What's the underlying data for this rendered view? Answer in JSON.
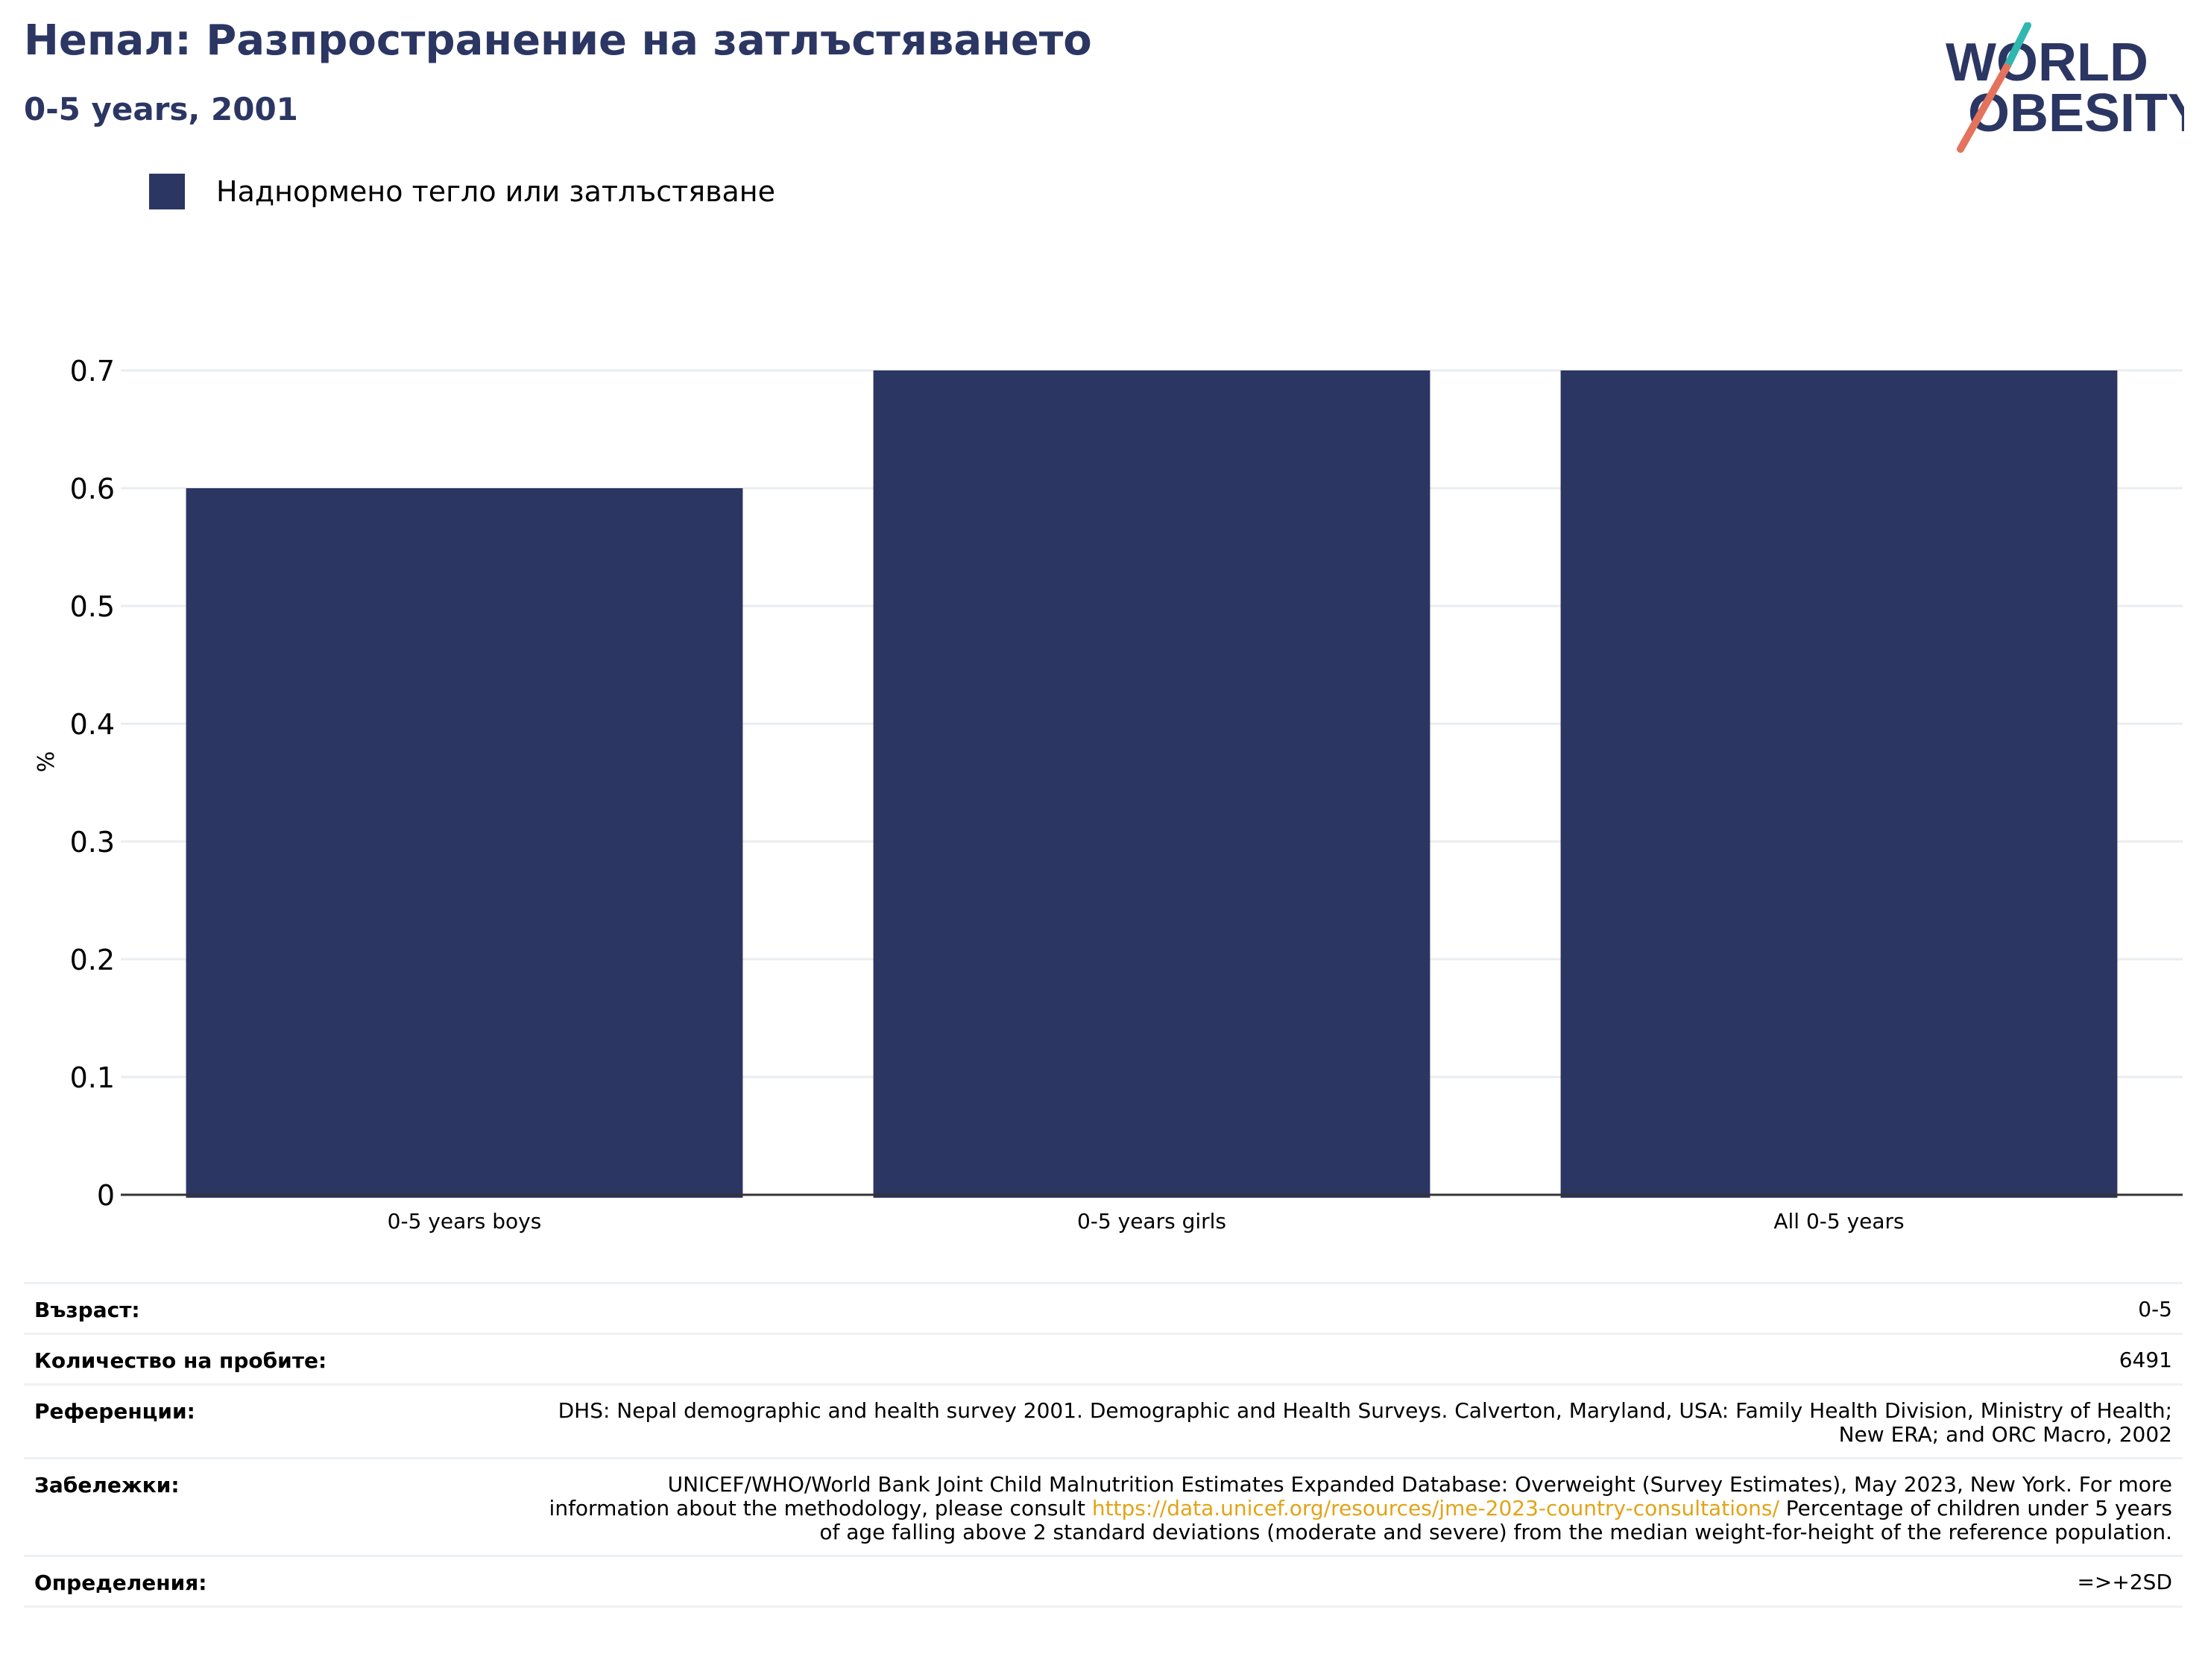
{
  "header": {
    "title": "Непал: Разпространение на затлъстяването",
    "subtitle": "0-5 years, 2001"
  },
  "logo": {
    "line1": "WORLD",
    "line2": "OBESITY"
  },
  "colors": {
    "bar": "#2b3663",
    "title": "#2b3663",
    "link": "#e3a316",
    "grid": "#e9edf0"
  },
  "chart_data": {
    "type": "bar",
    "categories": [
      "0-5 years boys",
      "0-5 years girls",
      "All 0-5 years"
    ],
    "series": [
      {
        "name": "Наднормено тегло или затлъстяване",
        "values": [
          0.6,
          0.7,
          0.7
        ]
      }
    ],
    "ylabel": "%",
    "xlabel": "",
    "ylim": [
      0,
      0.7
    ],
    "yticks": [
      "0",
      "0.1",
      "0.2",
      "0.3",
      "0.4",
      "0.5",
      "0.6",
      "0.7"
    ],
    "grid": true,
    "legend": "top-left"
  },
  "meta": {
    "age_key": "Възраст:",
    "age_val": "0-5",
    "sample_key": "Количество на пробите:",
    "sample_val": "6491",
    "refs_key": "Референции:",
    "refs_val": "DHS: Nepal demographic and health survey 2001. Demographic and Health Surveys. Calverton, Maryland, USA: Family Health Division, Ministry of Health; New ERA; and ORC Macro, 2002",
    "notes_key": "Забележки:",
    "notes_before": "UNICEF/WHO/World Bank Joint Child Malnutrition Estimates Expanded Database: Overweight (Survey Estimates), May 2023, New York. For more information about the methodology, please consult",
    "notes_link": "https://data.unicef.org/resources/jme-2023-country-consultations/",
    "notes_after": "Percentage of children under 5 years of age falling above 2 standard deviations (moderate and severe) from the median weight-for-height of the reference population.",
    "defs_key": "Определения:",
    "defs_val": "=>+2SD"
  }
}
